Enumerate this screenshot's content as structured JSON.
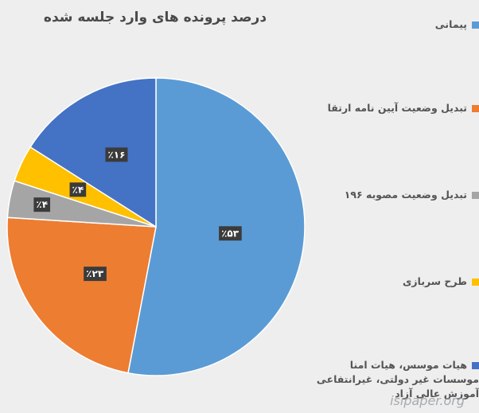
{
  "chart_data": {
    "type": "pie",
    "title": "درصد پرونده های وارد جلسه شده",
    "slices": [
      {
        "label": "پیمانی",
        "value": 53,
        "display": "٪۵۳",
        "color": "#5b9bd5"
      },
      {
        "label": "تبدیل وضعیت آیین نامه ارتقا",
        "value": 23,
        "display": "٪۲۳",
        "color": "#ed7d31"
      },
      {
        "label": "تبدیل وضعیت مصوبه ۱۹۶",
        "value": 4,
        "display": "٪۴",
        "color": "#a5a5a5"
      },
      {
        "label": "طرح سربازی",
        "value": 4,
        "display": "٪۴",
        "color": "#ffc000"
      },
      {
        "label": "هیات موسس، هیات امنا موسسات غیر دولتی، غیرانتفاعی آموزش عالی آزاد",
        "value": 16,
        "display": "٪۱۶",
        "color": "#4472c4"
      }
    ],
    "legend_position": "right"
  },
  "watermark": "isipaper.org"
}
